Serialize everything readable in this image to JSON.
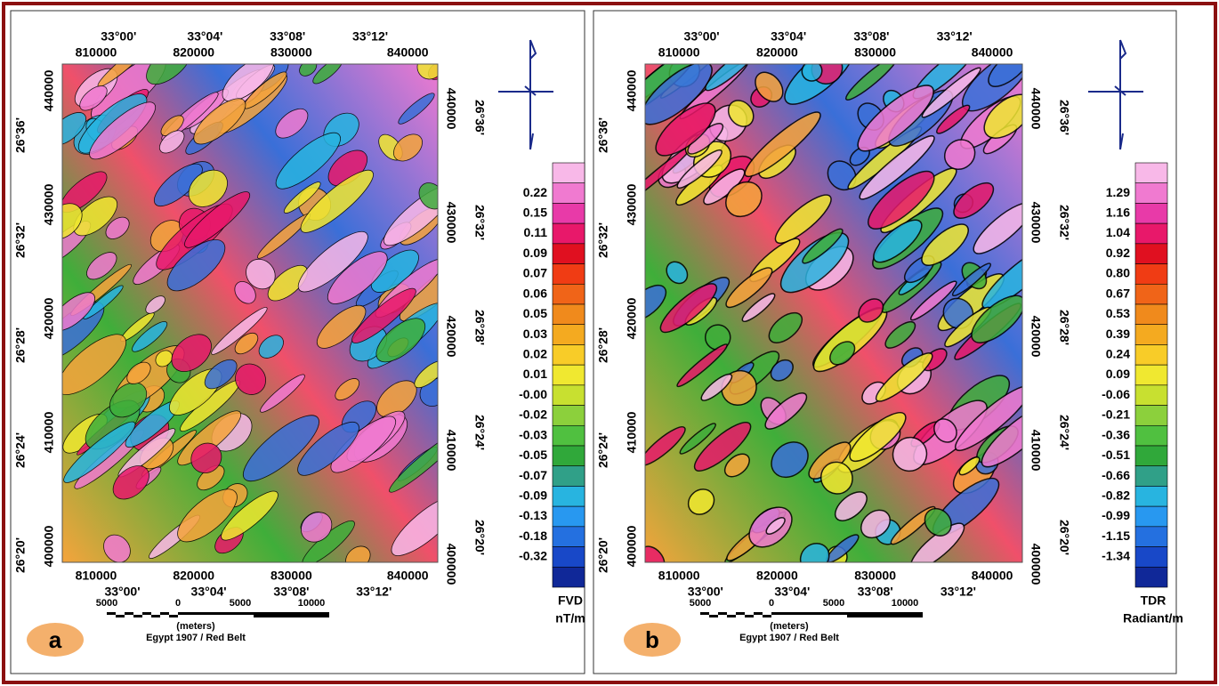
{
  "panels": [
    {
      "letter": "a",
      "top_degrees": [
        "33°00'",
        "33°04'",
        "33°08'",
        "33°12'"
      ],
      "eastings": [
        "810000",
        "820000",
        "830000",
        "840000"
      ],
      "northings": [
        "440000",
        "430000",
        "420000",
        "410000",
        "400000"
      ],
      "latitudes": [
        "26°36'",
        "26°32'",
        "26°28'",
        "26°24'",
        "26°20'"
      ],
      "colorbar_labels": [
        "0.22",
        "0.15",
        "0.11",
        "0.09",
        "0.07",
        "0.06",
        "0.05",
        "0.03",
        "0.02",
        "0.01",
        "-0.00",
        "-0.02",
        "-0.03",
        "-0.05",
        "-0.07",
        "-0.09",
        "-0.13",
        "-0.18",
        "-0.32"
      ],
      "colorbar_title": [
        "FVD",
        "nT/m"
      ],
      "scale_labels": [
        "5000",
        "0",
        "5000",
        "10000"
      ],
      "scale_unit": "(meters)",
      "datum": "Egypt 1907 / Red Belt"
    },
    {
      "letter": "b",
      "top_degrees": [
        "33°00'",
        "33°04'",
        "33°08'",
        "33°12'"
      ],
      "eastings": [
        "810000",
        "820000",
        "830000",
        "840000"
      ],
      "northings": [
        "440000",
        "430000",
        "420000",
        "410000",
        "400000"
      ],
      "latitudes": [
        "26°36'",
        "26°32'",
        "26°28'",
        "26°24'",
        "26°20'"
      ],
      "colorbar_labels": [
        "1.29",
        "1.16",
        "1.04",
        "0.92",
        "0.80",
        "0.67",
        "0.53",
        "0.39",
        "0.24",
        "0.09",
        "-0.06",
        "-0.21",
        "-0.36",
        "-0.51",
        "-0.66",
        "-0.82",
        "-0.99",
        "-1.15",
        "-1.34"
      ],
      "colorbar_title": [
        "TDR",
        "Radiant/m"
      ],
      "scale_labels": [
        "5000",
        "0",
        "5000",
        "10000"
      ],
      "scale_unit": "(meters)",
      "datum": "Egypt 1907 / Red Belt"
    }
  ]
}
